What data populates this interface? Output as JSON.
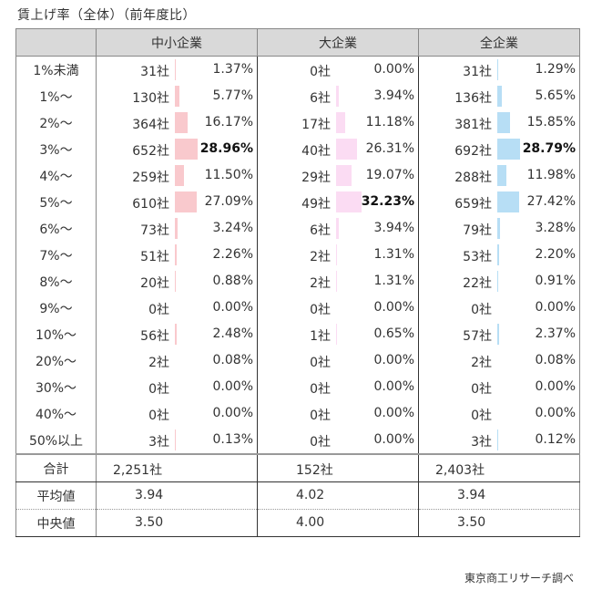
{
  "title": "賃上げ率（全体）（前年度比）",
  "headers": {
    "label": "",
    "groups": [
      "中小企業",
      "大企業",
      "全企業"
    ]
  },
  "colors": {
    "sme_bar": "#f9c9cd",
    "large_bar": "#fbdcf3",
    "all_bar": "#b7def5",
    "header_bg": "#d9d9d9"
  },
  "rows": [
    {
      "label": "1%未満",
      "sme": {
        "count": "31社",
        "pct": "1.37%",
        "v": 1.37
      },
      "large": {
        "count": "0社",
        "pct": "0.00%",
        "v": 0
      },
      "all": {
        "count": "31社",
        "pct": "1.29%",
        "v": 1.29
      }
    },
    {
      "label": "1%～",
      "sme": {
        "count": "130社",
        "pct": "5.77%",
        "v": 5.77
      },
      "large": {
        "count": "6社",
        "pct": "3.94%",
        "v": 3.94
      },
      "all": {
        "count": "136社",
        "pct": "5.65%",
        "v": 5.65
      }
    },
    {
      "label": "2%～",
      "sme": {
        "count": "364社",
        "pct": "16.17%",
        "v": 16.17
      },
      "large": {
        "count": "17社",
        "pct": "11.18%",
        "v": 11.18
      },
      "all": {
        "count": "381社",
        "pct": "15.85%",
        "v": 15.85
      }
    },
    {
      "label": "3%～",
      "sme": {
        "count": "652社",
        "pct": "28.96%",
        "v": 28.96,
        "bold": true
      },
      "large": {
        "count": "40社",
        "pct": "26.31%",
        "v": 26.31
      },
      "all": {
        "count": "692社",
        "pct": "28.79%",
        "v": 28.79,
        "bold": true
      }
    },
    {
      "label": "4%～",
      "sme": {
        "count": "259社",
        "pct": "11.50%",
        "v": 11.5
      },
      "large": {
        "count": "29社",
        "pct": "19.07%",
        "v": 19.07
      },
      "all": {
        "count": "288社",
        "pct": "11.98%",
        "v": 11.98
      }
    },
    {
      "label": "5%～",
      "sme": {
        "count": "610社",
        "pct": "27.09%",
        "v": 27.09
      },
      "large": {
        "count": "49社",
        "pct": "32.23%",
        "v": 32.23,
        "bold": true
      },
      "all": {
        "count": "659社",
        "pct": "27.42%",
        "v": 27.42
      }
    },
    {
      "label": "6%～",
      "sme": {
        "count": "73社",
        "pct": "3.24%",
        "v": 3.24
      },
      "large": {
        "count": "6社",
        "pct": "3.94%",
        "v": 3.94
      },
      "all": {
        "count": "79社",
        "pct": "3.28%",
        "v": 3.28
      }
    },
    {
      "label": "7%～",
      "sme": {
        "count": "51社",
        "pct": "2.26%",
        "v": 2.26
      },
      "large": {
        "count": "2社",
        "pct": "1.31%",
        "v": 1.31
      },
      "all": {
        "count": "53社",
        "pct": "2.20%",
        "v": 2.2
      }
    },
    {
      "label": "8%～",
      "sme": {
        "count": "20社",
        "pct": "0.88%",
        "v": 0.88
      },
      "large": {
        "count": "2社",
        "pct": "1.31%",
        "v": 1.31
      },
      "all": {
        "count": "22社",
        "pct": "0.91%",
        "v": 0.91
      }
    },
    {
      "label": "9%～",
      "sme": {
        "count": "0社",
        "pct": "0.00%",
        "v": 0
      },
      "large": {
        "count": "0社",
        "pct": "0.00%",
        "v": 0
      },
      "all": {
        "count": "0社",
        "pct": "0.00%",
        "v": 0
      }
    },
    {
      "label": "10%～",
      "sme": {
        "count": "56社",
        "pct": "2.48%",
        "v": 2.48
      },
      "large": {
        "count": "1社",
        "pct": "0.65%",
        "v": 0.65
      },
      "all": {
        "count": "57社",
        "pct": "2.37%",
        "v": 2.37
      }
    },
    {
      "label": "20%～",
      "sme": {
        "count": "2社",
        "pct": "0.08%",
        "v": 0.08
      },
      "large": {
        "count": "0社",
        "pct": "0.00%",
        "v": 0
      },
      "all": {
        "count": "2社",
        "pct": "0.08%",
        "v": 0.08
      }
    },
    {
      "label": "30%～",
      "sme": {
        "count": "0社",
        "pct": "0.00%",
        "v": 0
      },
      "large": {
        "count": "0社",
        "pct": "0.00%",
        "v": 0
      },
      "all": {
        "count": "0社",
        "pct": "0.00%",
        "v": 0
      }
    },
    {
      "label": "40%～",
      "sme": {
        "count": "0社",
        "pct": "0.00%",
        "v": 0
      },
      "large": {
        "count": "0社",
        "pct": "0.00%",
        "v": 0
      },
      "all": {
        "count": "0社",
        "pct": "0.00%",
        "v": 0
      }
    },
    {
      "label": "50%以上",
      "sme": {
        "count": "3社",
        "pct": "0.13%",
        "v": 0.13
      },
      "large": {
        "count": "0社",
        "pct": "0.00%",
        "v": 0
      },
      "all": {
        "count": "3社",
        "pct": "0.12%",
        "v": 0.12
      }
    }
  ],
  "summary": {
    "total": {
      "label": "合計",
      "sme": "2,251社",
      "large": "152社",
      "all": "2,403社"
    },
    "mean": {
      "label": "平均値",
      "sme": "3.94",
      "large": "4.02",
      "all": "3.94"
    },
    "median": {
      "label": "中央値",
      "sme": "3.50",
      "large": "4.00",
      "all": "3.50"
    }
  },
  "source": "東京商工リサーチ調べ"
}
